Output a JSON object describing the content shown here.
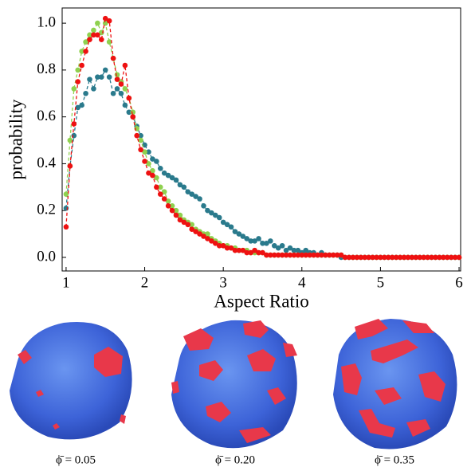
{
  "chart_data": {
    "type": "line",
    "xlabel": "Aspect Ratio",
    "ylabel": "probability",
    "xlim": [
      0.95,
      6.02
    ],
    "ylim": [
      -0.058,
      1.065
    ],
    "xticks": [
      1,
      2,
      3,
      4,
      5,
      6
    ],
    "yticks": [
      {
        "value": 0,
        "label": "0.0"
      },
      {
        "value": 0.2,
        "label": "0.2"
      },
      {
        "value": 0.4,
        "label": "0.4"
      },
      {
        "value": 0.6,
        "label": "0.6"
      },
      {
        "value": 0.8,
        "label": "0.8"
      },
      {
        "value": 1,
        "label": "1.0"
      }
    ],
    "x": [
      1,
      1.05,
      1.1,
      1.15,
      1.2,
      1.25,
      1.3,
      1.35,
      1.4,
      1.45,
      1.5,
      1.55,
      1.6,
      1.65,
      1.7,
      1.75,
      1.8,
      1.85,
      1.9,
      1.95,
      2,
      2.05,
      2.1,
      2.15,
      2.2,
      2.25,
      2.3,
      2.35,
      2.4,
      2.45,
      2.5,
      2.55,
      2.6,
      2.65,
      2.7,
      2.75,
      2.8,
      2.85,
      2.9,
      2.95,
      3,
      3.05,
      3.1,
      3.15,
      3.2,
      3.25,
      3.3,
      3.35,
      3.4,
      3.45,
      3.5,
      3.55,
      3.6,
      3.65,
      3.7,
      3.75,
      3.8,
      3.85,
      3.9,
      3.95,
      4,
      4.05,
      4.1,
      4.15,
      4.2,
      4.25,
      4.3,
      4.35,
      4.4,
      4.45,
      4.5,
      4.55,
      4.6,
      4.65,
      4.7,
      4.75,
      4.8,
      4.85,
      4.9,
      4.95,
      5,
      5.05,
      5.1,
      5.15,
      5.2,
      5.25,
      5.3,
      5.35,
      5.4,
      5.45,
      5.5,
      5.55,
      5.6,
      5.65,
      5.7,
      5.75,
      5.8,
      5.85,
      5.9,
      5.95,
      6
    ],
    "series": [
      {
        "color": "#2a7a8c",
        "values": [
          0.21,
          0.39,
          0.52,
          0.64,
          0.65,
          0.7,
          0.76,
          0.72,
          0.77,
          0.77,
          0.8,
          0.77,
          0.7,
          0.72,
          0.7,
          0.65,
          0.62,
          0.6,
          0.56,
          0.52,
          0.48,
          0.45,
          0.42,
          0.41,
          0.38,
          0.36,
          0.35,
          0.34,
          0.33,
          0.31,
          0.3,
          0.28,
          0.27,
          0.26,
          0.25,
          0.22,
          0.2,
          0.19,
          0.18,
          0.17,
          0.15,
          0.14,
          0.13,
          0.11,
          0.1,
          0.09,
          0.08,
          0.07,
          0.07,
          0.08,
          0.06,
          0.06,
          0.07,
          0.05,
          0.04,
          0.05,
          0.03,
          0.04,
          0.03,
          0.03,
          0.02,
          0.03,
          0.02,
          0.02,
          0.01,
          0.02,
          0.01,
          0.01,
          0.01,
          0.01,
          0,
          0,
          0,
          0,
          0,
          0,
          0,
          0,
          0,
          0,
          0,
          0,
          0,
          0,
          0,
          0,
          0,
          0,
          0,
          0,
          0,
          0,
          0,
          0,
          0,
          0,
          0,
          0,
          0,
          0,
          0
        ]
      },
      {
        "color": "#8fd14f",
        "values": [
          0.27,
          0.5,
          0.72,
          0.8,
          0.88,
          0.92,
          0.95,
          0.97,
          1,
          0.96,
          1,
          0.92,
          0.85,
          0.78,
          0.75,
          0.72,
          0.68,
          0.62,
          0.55,
          0.5,
          0.45,
          0.4,
          0.37,
          0.34,
          0.3,
          0.28,
          0.24,
          0.22,
          0.2,
          0.18,
          0.16,
          0.15,
          0.14,
          0.12,
          0.11,
          0.1,
          0.1,
          0.08,
          0.07,
          0.06,
          0.05,
          0.05,
          0.04,
          0.04,
          0.03,
          0.03,
          0.03,
          0.02,
          0.02,
          0.02,
          0.02,
          0.01,
          0.01,
          0.01,
          0.01,
          0.01,
          0.01,
          0.01,
          0.01,
          0.01,
          0.01,
          0.01,
          0.01,
          0.01,
          0.01,
          0.01,
          0.01,
          0.01,
          0.01,
          0.01,
          0.01,
          0,
          0,
          0,
          0,
          0,
          0,
          0,
          0,
          0,
          0,
          0,
          0,
          0,
          0,
          0,
          0,
          0,
          0,
          0,
          0,
          0,
          0,
          0,
          0,
          0,
          0,
          0,
          0,
          0,
          0
        ]
      },
      {
        "color": "#ee1111",
        "values": [
          0.13,
          0.39,
          0.57,
          0.75,
          0.82,
          0.88,
          0.93,
          0.95,
          0.95,
          0.93,
          1.02,
          1.01,
          0.85,
          0.76,
          0.74,
          0.82,
          0.68,
          0.6,
          0.52,
          0.46,
          0.41,
          0.36,
          0.35,
          0.3,
          0.27,
          0.25,
          0.22,
          0.2,
          0.18,
          0.16,
          0.15,
          0.14,
          0.12,
          0.11,
          0.1,
          0.09,
          0.08,
          0.07,
          0.06,
          0.05,
          0.05,
          0.04,
          0.04,
          0.03,
          0.03,
          0.03,
          0.02,
          0.02,
          0.03,
          0.02,
          0.02,
          0.01,
          0.01,
          0.01,
          0.01,
          0.01,
          0.01,
          0.01,
          0.01,
          0.01,
          0.01,
          0.01,
          0.01,
          0.01,
          0.01,
          0.01,
          0.01,
          0.01,
          0.01,
          0.01,
          0.01,
          0,
          0,
          0,
          0,
          0,
          0,
          0,
          0,
          0,
          0,
          0,
          0,
          0,
          0,
          0,
          0,
          0,
          0,
          0,
          0,
          0,
          0,
          0,
          0,
          0,
          0,
          0,
          0,
          0,
          0
        ]
      }
    ]
  },
  "captions": [
    "ϕ̄ = 0.05",
    "ϕ̄ = 0.20",
    "ϕ̄ = 0.35"
  ]
}
